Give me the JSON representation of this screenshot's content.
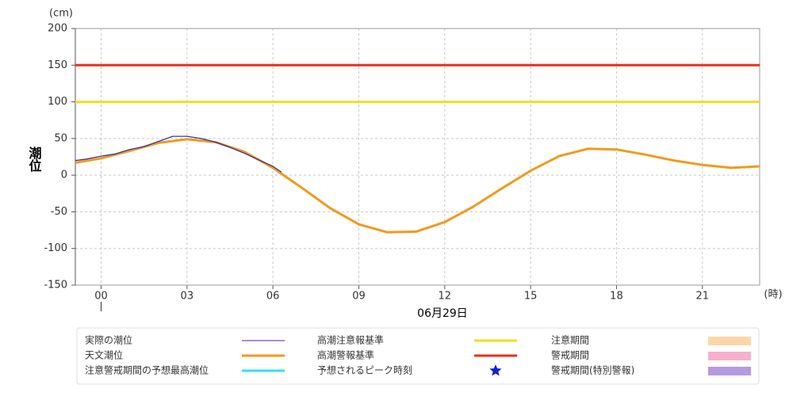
{
  "chart_data": {
    "type": "line",
    "y_label": "潮位",
    "y_unit": "(cm)",
    "x_unit": "(時)",
    "date_label": "06月29日",
    "xlim": [
      -0.9,
      23
    ],
    "ylim": [
      -150,
      200
    ],
    "xticks": [
      {
        "value": 0,
        "label": "00"
      },
      {
        "value": 3,
        "label": "03"
      },
      {
        "value": 6,
        "label": "06"
      },
      {
        "value": 9,
        "label": "09"
      },
      12,
      15,
      18,
      21
    ],
    "yticks": [
      200,
      150,
      100,
      50,
      0,
      -50,
      -100,
      -150
    ],
    "grid": true,
    "series": [
      {
        "name": "実際の潮位",
        "color": "#3b2fa8",
        "legend_color": "#a98fd6",
        "x": [
          -0.9,
          -0.5,
          0,
          0.5,
          1,
          1.5,
          2,
          2.5,
          3,
          3.5,
          4,
          4.5,
          5,
          5.5,
          6,
          6.3
        ],
        "values": [
          20,
          22,
          26,
          29,
          35,
          39,
          46,
          53,
          53,
          50,
          45,
          38,
          30,
          21,
          12,
          4
        ]
      },
      {
        "name": "天文潮位",
        "color": "#f19a1c",
        "x": [
          -0.9,
          0,
          1,
          2,
          3,
          4,
          5,
          6,
          7,
          8,
          9,
          10,
          11,
          12,
          13,
          14,
          15,
          16,
          17,
          18,
          19,
          20,
          21,
          22,
          23
        ],
        "values": [
          17,
          23,
          33,
          44,
          49,
          45,
          32,
          10,
          -17,
          -45,
          -67,
          -78,
          -77,
          -64,
          -43,
          -18,
          6,
          26,
          36,
          35,
          28,
          20,
          14,
          10,
          12
        ]
      }
    ],
    "thresholds": [
      {
        "name": "高潮注意報基準",
        "color": "#f0e020",
        "value": 100
      },
      {
        "name": "高潮警報基準",
        "color": "#e8301a",
        "value": 150
      }
    ],
    "legend_extra": [
      {
        "name": "注意警戒期間の予想最高潮位",
        "color": "#33e0f0",
        "symbol": "line"
      },
      {
        "name": "予想されるピーク時刻",
        "color": "#1020d0",
        "symbol": "star"
      },
      {
        "name": "注意期間",
        "color": "#fbd6a8",
        "symbol": "box"
      },
      {
        "name": "警戒期間",
        "color": "#f7b0cc",
        "symbol": "box"
      },
      {
        "name": "警戒期間(特別警報)",
        "color": "#b49ae0",
        "symbol": "box"
      }
    ]
  }
}
